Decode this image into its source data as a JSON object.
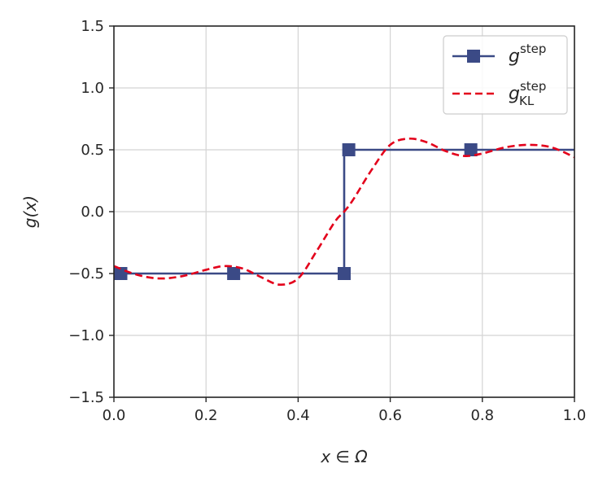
{
  "chart_data": {
    "type": "line",
    "xlabel": "x ∈ Ω",
    "ylabel": "g(x)",
    "xlim": [
      0.0,
      1.0
    ],
    "ylim": [
      -1.5,
      1.5
    ],
    "xticks": [
      0.0,
      0.2,
      0.4,
      0.6,
      0.8,
      1.0
    ],
    "xtick_labels": [
      "0.0",
      "0.2",
      "0.4",
      "0.6",
      "0.8",
      "1.0"
    ],
    "yticks": [
      -1.5,
      -1.0,
      -0.5,
      0.0,
      0.5,
      1.0,
      1.5
    ],
    "ytick_labels": [
      "−1.5",
      "−1.0",
      "−0.5",
      "0.0",
      "0.5",
      "1.0",
      "1.5"
    ],
    "grid": true,
    "legend_position": "top-right",
    "series": [
      {
        "name": "g",
        "name_superscript": "step",
        "name_subscript": "",
        "style": "solid",
        "marker": "square",
        "color": "#3b4a86",
        "x": [
          0.015,
          0.26,
          0.5,
          0.5,
          0.51,
          0.775,
          1.0
        ],
        "y": [
          -0.5,
          -0.5,
          -0.5,
          0.5,
          0.5,
          0.5,
          0.5
        ],
        "marker_indices": [
          0,
          1,
          2,
          4,
          5
        ]
      },
      {
        "name": "g",
        "name_superscript": "step",
        "name_subscript": "KL",
        "style": "dashed",
        "marker": "none",
        "color": "#e3001b",
        "x": [
          0.0,
          0.05,
          0.1,
          0.15,
          0.2,
          0.24,
          0.28,
          0.32,
          0.36,
          0.4,
          0.44,
          0.48,
          0.5,
          0.52,
          0.56,
          0.6,
          0.64,
          0.68,
          0.72,
          0.76,
          0.8,
          0.85,
          0.9,
          0.95,
          1.0
        ],
        "y": [
          -0.44,
          -0.51,
          -0.54,
          -0.52,
          -0.47,
          -0.44,
          -0.46,
          -0.53,
          -0.59,
          -0.54,
          -0.32,
          -0.08,
          0.0,
          0.1,
          0.34,
          0.54,
          0.59,
          0.56,
          0.49,
          0.45,
          0.47,
          0.52,
          0.54,
          0.52,
          0.44
        ]
      }
    ]
  }
}
